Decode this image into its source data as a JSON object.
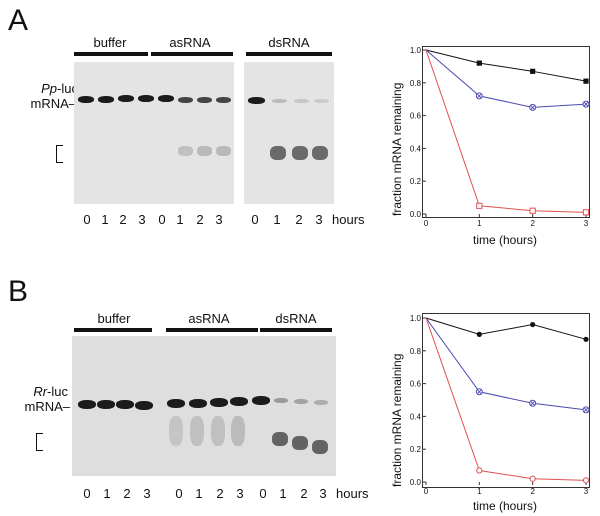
{
  "panels": {
    "A": {
      "letter": "A",
      "conditions": [
        "buffer",
        "asRNA",
        "dsRNA"
      ],
      "lane_numbers": [
        "0",
        "1",
        "2",
        "3"
      ],
      "hours_label": "hours",
      "target_italic": "Pp",
      "target_suffix": "-luc",
      "target_mrna": "mRNA–",
      "bracket_glyph": "["
    },
    "B": {
      "letter": "B",
      "conditions": [
        "buffer",
        "asRNA",
        "dsRNA"
      ],
      "lane_numbers": [
        "0",
        "1",
        "2",
        "3"
      ],
      "hours_label": "hours",
      "target_italic": "Rr",
      "target_suffix": "-luc",
      "target_mrna": "mRNA–",
      "bracket_glyph": "["
    }
  },
  "chart_data": [
    {
      "type": "line",
      "panel": "A",
      "xlabel": "time (hours)",
      "ylabel": "fraction mRNA remaining",
      "x": [
        0,
        1,
        2,
        3
      ],
      "xticks": [
        "0",
        "1",
        "2",
        "3"
      ],
      "yticks": [
        "0.0",
        "0.2",
        "0.4",
        "0.6",
        "0.8",
        "1.0"
      ],
      "xlim": [
        0,
        3
      ],
      "ylim": [
        0,
        1.0
      ],
      "series": [
        {
          "marker": "filled-square",
          "color": "#111111",
          "values": [
            1.0,
            0.92,
            0.87,
            0.81
          ]
        },
        {
          "marker": "crossed-circle",
          "color": "#4a4ab0",
          "values": [
            1.0,
            0.72,
            0.65,
            0.67
          ]
        },
        {
          "marker": "open-square",
          "color": "#e05050",
          "values": [
            1.0,
            0.05,
            0.02,
            0.01
          ]
        }
      ]
    },
    {
      "type": "line",
      "panel": "B",
      "xlabel": "time (hours)",
      "ylabel": "fraction mRNA remaining",
      "x": [
        0,
        1,
        2,
        3
      ],
      "xticks": [
        "0",
        "1",
        "2",
        "3"
      ],
      "yticks": [
        "0.0",
        "0.2",
        "0.4",
        "0.6",
        "0.8",
        "1.0"
      ],
      "xlim": [
        0,
        3
      ],
      "ylim": [
        0,
        1.0
      ],
      "series": [
        {
          "marker": "filled-circle",
          "color": "#111111",
          "values": [
            1.0,
            0.9,
            0.96,
            0.87
          ]
        },
        {
          "marker": "crossed-circle",
          "color": "#4a4ab0",
          "values": [
            1.0,
            0.55,
            0.48,
            0.44
          ]
        },
        {
          "marker": "open-circle",
          "color": "#e05050",
          "values": [
            1.0,
            0.07,
            0.02,
            0.01
          ]
        }
      ]
    }
  ]
}
